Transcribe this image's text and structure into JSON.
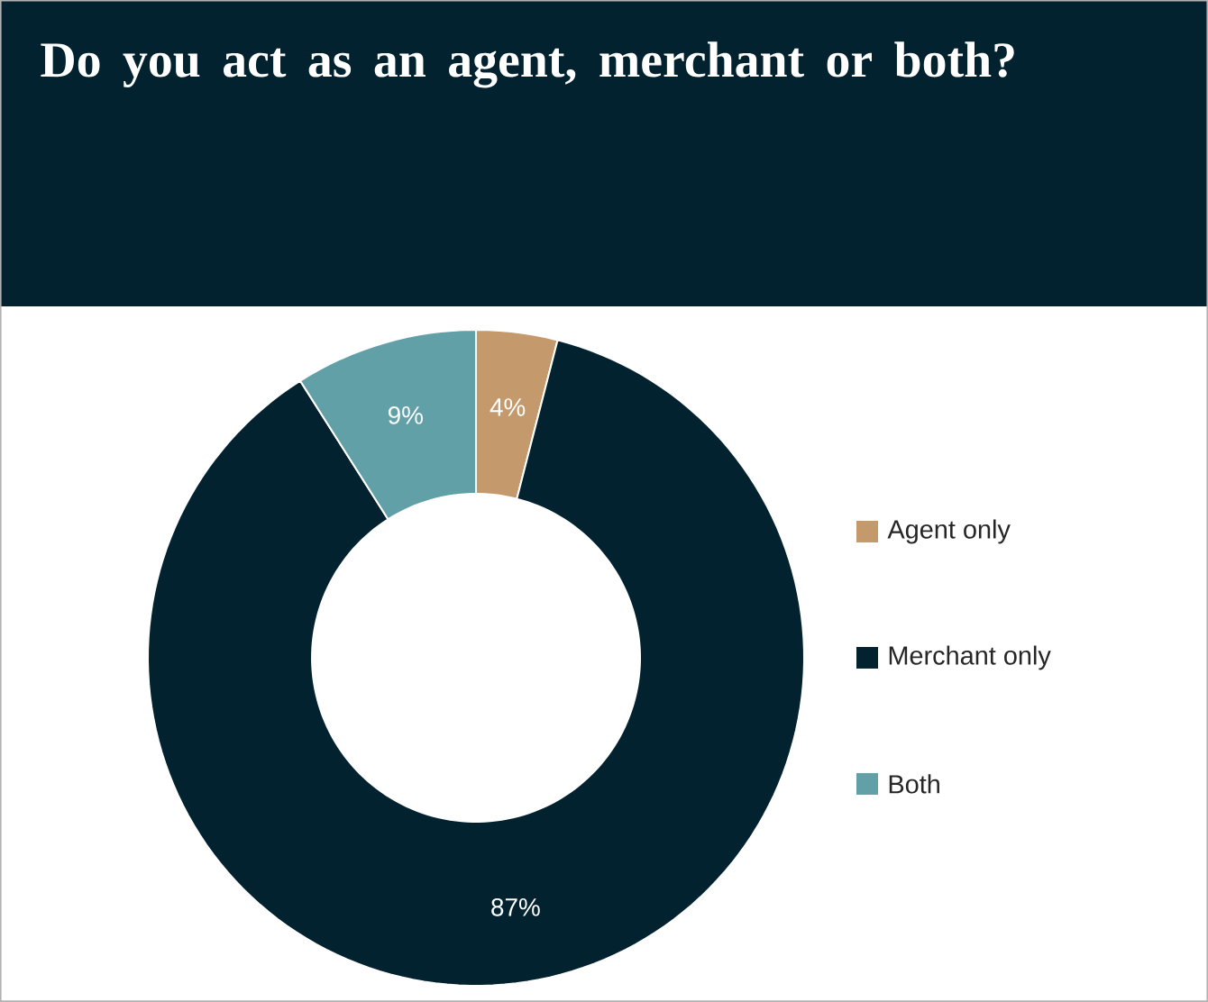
{
  "chart_data": {
    "type": "donut",
    "title": "Do you act as an agent, merchant or both?",
    "categories": [
      "Agent only",
      "Merchant only",
      "Both"
    ],
    "values": [
      4,
      87,
      9
    ],
    "colors": [
      "#c49a6c",
      "#03222f",
      "#62a0a8"
    ],
    "value_labels": [
      "4%",
      "87%",
      "9%"
    ],
    "legend": "right"
  }
}
